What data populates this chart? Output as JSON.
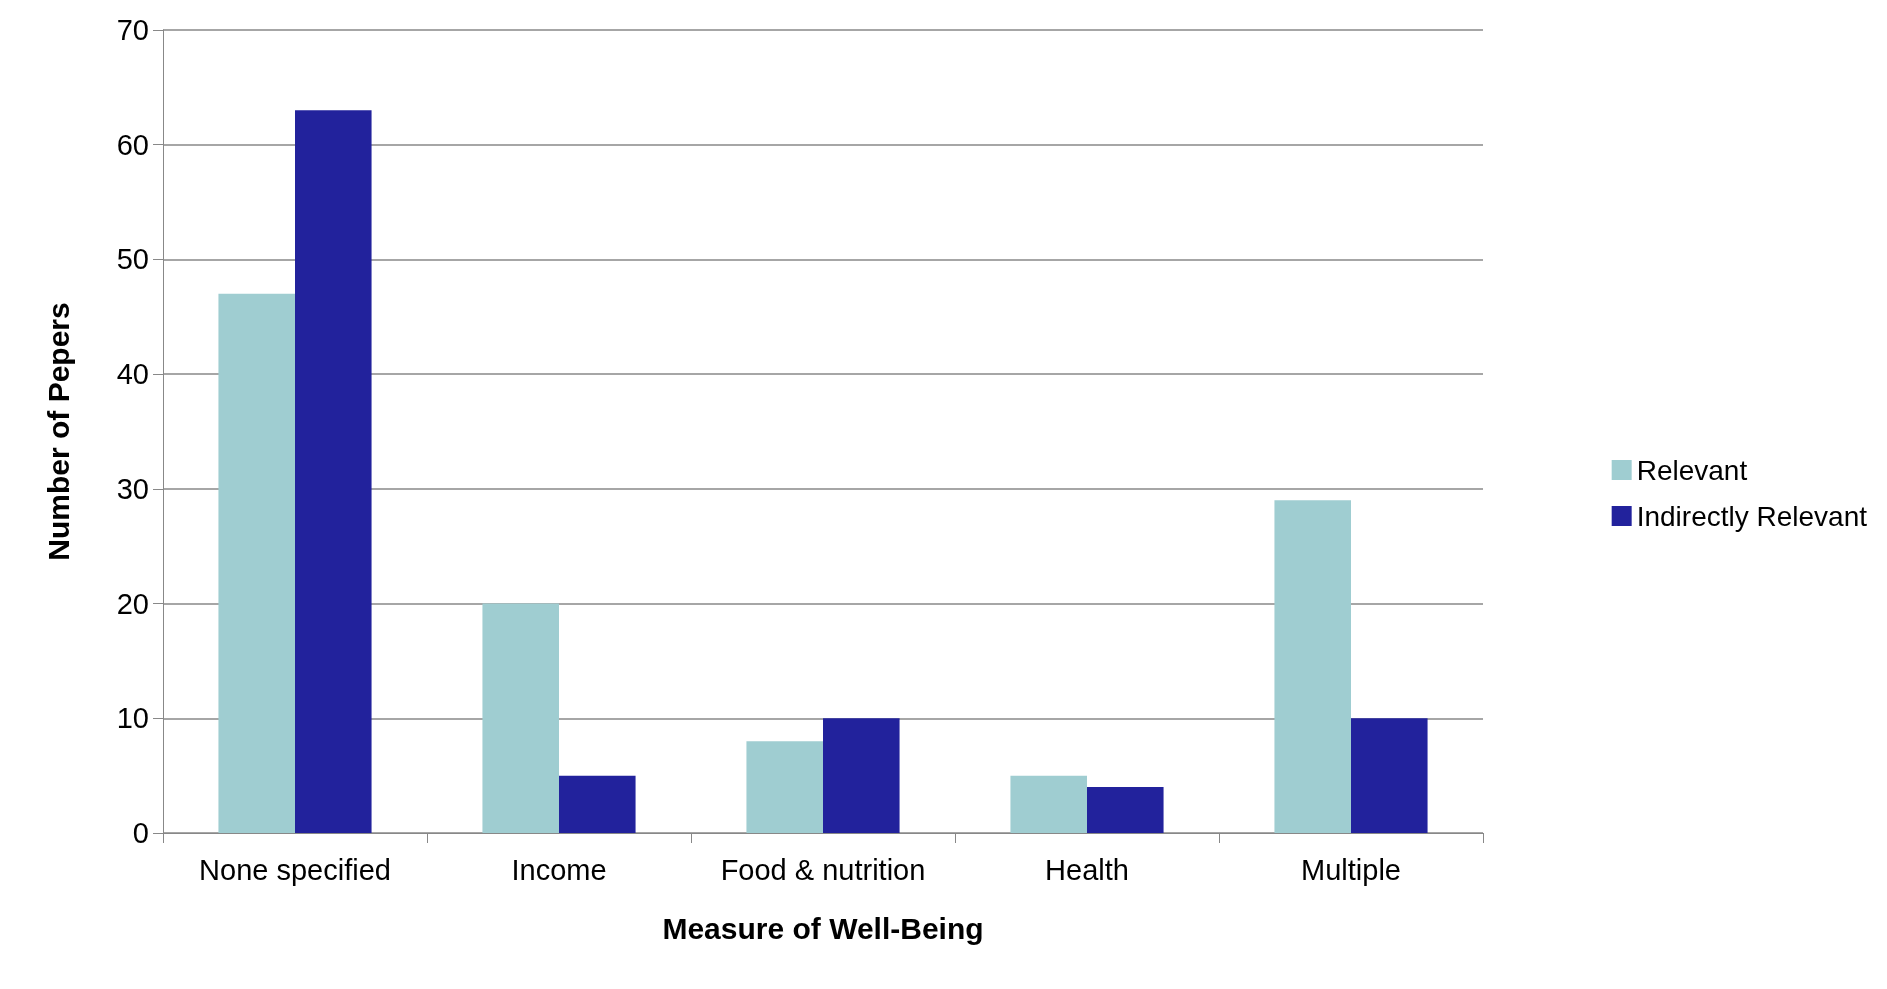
{
  "chart_data": {
    "type": "bar",
    "xlabel": "Measure of Well-Being",
    "ylabel": "Number of Pepers",
    "categories": [
      "None specified",
      "Income",
      "Food & nutrition",
      "Health",
      "Multiple"
    ],
    "series": [
      {
        "name": "Relevant",
        "color": "#9fcdd1",
        "values": [
          47,
          20,
          8,
          5,
          29
        ]
      },
      {
        "name": "Indirectly Relevant",
        "color": "#22229c",
        "values": [
          63,
          5,
          10,
          4,
          10
        ]
      }
    ],
    "ylim": [
      0,
      70
    ],
    "yticks": [
      0,
      10,
      20,
      30,
      40,
      50,
      60,
      70
    ],
    "grid": "y",
    "legend": "right"
  }
}
